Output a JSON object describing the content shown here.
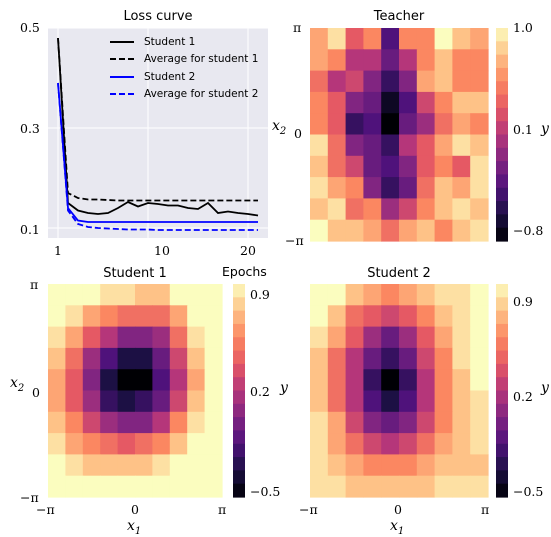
{
  "colors": {
    "loss_bg": "#e8e8f0",
    "student1": "#000000",
    "student2": "#0000ff",
    "magma_stops": [
      "#000004",
      "#1c1044",
      "#4f127b",
      "#812581",
      "#b5367a",
      "#e55964",
      "#fb8761",
      "#fec287",
      "#fbfdbf"
    ]
  },
  "chart_data": [
    {
      "type": "line",
      "title": "Loss curve",
      "xlabel": "Epochs",
      "ylabel": "",
      "xlim": [
        0,
        22
      ],
      "ylim": [
        0.08,
        0.5
      ],
      "xticks": [
        "1",
        "10",
        "20"
      ],
      "yticks": [
        "0.1",
        "0.3",
        "0.5"
      ],
      "grid": true,
      "legend_position": "top-right",
      "x": [
        1,
        2,
        3,
        4,
        5,
        6,
        7,
        8,
        9,
        10,
        11,
        12,
        13,
        14,
        15,
        16,
        17,
        18,
        19,
        20,
        21
      ],
      "series": [
        {
          "name": "Student 1",
          "style": "solid",
          "color": "#000000",
          "values": [
            0.48,
            0.15,
            0.135,
            0.13,
            0.128,
            0.13,
            0.14,
            0.152,
            0.143,
            0.15,
            0.148,
            0.145,
            0.145,
            0.14,
            0.138,
            0.15,
            0.13,
            0.133,
            0.13,
            0.128,
            0.125
          ]
        },
        {
          "name": "Average for student 1",
          "style": "dashed",
          "color": "#000000",
          "values": [
            0.48,
            0.17,
            0.16,
            0.157,
            0.157,
            0.156,
            0.155,
            0.155,
            0.155,
            0.155,
            0.155,
            0.155,
            0.155,
            0.155,
            0.155,
            0.155,
            0.155,
            0.155,
            0.155,
            0.155,
            0.155
          ]
        },
        {
          "name": "Student 2",
          "style": "solid",
          "color": "#0000ff",
          "values": [
            0.39,
            0.14,
            0.115,
            0.112,
            0.112,
            0.112,
            0.112,
            0.112,
            0.112,
            0.112,
            0.112,
            0.112,
            0.112,
            0.112,
            0.112,
            0.112,
            0.112,
            0.112,
            0.112,
            0.112,
            0.112
          ]
        },
        {
          "name": "Average for student 2",
          "style": "dashed",
          "color": "#0000ff",
          "values": [
            0.39,
            0.135,
            0.108,
            0.102,
            0.1,
            0.099,
            0.098,
            0.097,
            0.097,
            0.097,
            0.096,
            0.096,
            0.096,
            0.096,
            0.096,
            0.096,
            0.096,
            0.096,
            0.096,
            0.096,
            0.096
          ]
        }
      ]
    },
    {
      "type": "heatmap",
      "title": "Teacher",
      "xlabel": "",
      "ylabel": "x2",
      "colorbar_label": "y",
      "colorbar_ticks": [
        "1.0",
        "0.1",
        "−0.8"
      ],
      "vmin": -0.8,
      "vmax": 1.0,
      "yticks": [
        "π",
        "0",
        "−π"
      ],
      "xticks": [],
      "center": [
        0.1,
        0.0
      ],
      "values": [
        [
          0.68,
          0.84,
          0.33,
          0.56,
          -0.31,
          0.52,
          0.6,
          0.98,
          0.73,
          0.66
        ],
        [
          0.64,
          0.58,
          0.08,
          0.05,
          -0.26,
          0.06,
          0.55,
          0.83,
          0.52,
          0.58
        ],
        [
          0.45,
          0.15,
          0.22,
          -0.14,
          -0.48,
          -0.12,
          0.66,
          0.72,
          0.5,
          0.6
        ],
        [
          0.58,
          0.34,
          -0.12,
          -0.25,
          -0.68,
          -0.4,
          0.21,
          0.56,
          0.72,
          0.75
        ],
        [
          0.5,
          0.3,
          -0.45,
          -0.35,
          -0.8,
          -0.2,
          -0.05,
          0.44,
          0.62,
          0.58
        ],
        [
          0.9,
          0.42,
          -0.15,
          -0.28,
          -0.48,
          0.1,
          0.38,
          0.68,
          0.92,
          0.82
        ],
        [
          0.78,
          0.46,
          0.22,
          -0.22,
          -0.35,
          -0.15,
          0.34,
          0.54,
          0.28,
          0.85
        ],
        [
          0.88,
          0.62,
          0.5,
          -0.1,
          -0.45,
          -0.2,
          0.4,
          0.72,
          0.65,
          0.94
        ],
        [
          0.8,
          0.9,
          0.48,
          0.5,
          -0.05,
          0.2,
          0.55,
          0.8,
          0.9,
          0.8
        ],
        [
          0.95,
          0.72,
          0.78,
          0.7,
          0.48,
          0.62,
          0.78,
          0.55,
          0.74,
          0.88
        ]
      ]
    },
    {
      "type": "heatmap",
      "title": "Student 1",
      "xlabel": "x1",
      "ylabel": "x2",
      "colorbar_label": "y",
      "colorbar_ticks": [
        "0.9",
        "0.2",
        "−0.5"
      ],
      "vmin": -0.5,
      "vmax": 0.9,
      "xticks": [
        "−π",
        "0",
        "π"
      ],
      "yticks": [
        "π",
        "0",
        "−π"
      ],
      "center": [
        0.15,
        0.35
      ],
      "values": [
        [
          0.9,
          0.9,
          0.88,
          0.84,
          0.78,
          0.74,
          0.76,
          0.86,
          0.9,
          0.9
        ],
        [
          0.88,
          0.82,
          0.66,
          0.52,
          0.44,
          0.42,
          0.5,
          0.68,
          0.86,
          0.9
        ],
        [
          0.82,
          0.62,
          0.36,
          0.16,
          0.04,
          0.02,
          0.14,
          0.44,
          0.78,
          0.9
        ],
        [
          0.72,
          0.44,
          0.12,
          -0.16,
          -0.32,
          -0.32,
          -0.1,
          0.26,
          0.7,
          0.9
        ],
        [
          0.66,
          0.34,
          0.02,
          -0.32,
          -0.5,
          -0.46,
          -0.14,
          0.22,
          0.66,
          0.9
        ],
        [
          0.66,
          0.38,
          0.08,
          -0.2,
          -0.32,
          -0.28,
          -0.02,
          0.32,
          0.72,
          0.9
        ],
        [
          0.72,
          0.52,
          0.3,
          0.1,
          0.02,
          0.06,
          0.24,
          0.52,
          0.8,
          0.9
        ],
        [
          0.8,
          0.68,
          0.56,
          0.44,
          0.4,
          0.44,
          0.58,
          0.74,
          0.86,
          0.9
        ],
        [
          0.86,
          0.8,
          0.76,
          0.72,
          0.72,
          0.74,
          0.8,
          0.86,
          0.9,
          0.9
        ],
        [
          0.9,
          0.88,
          0.86,
          0.86,
          0.86,
          0.88,
          0.9,
          0.9,
          0.9,
          0.9
        ]
      ]
    },
    {
      "type": "heatmap",
      "title": "Student 2",
      "xlabel": "x1",
      "ylabel": "",
      "colorbar_label": "y",
      "colorbar_ticks": [
        "0.9",
        "0.2",
        "−0.5"
      ],
      "vmin": -0.5,
      "vmax": 0.9,
      "xticks": [
        "−π",
        "0",
        "π"
      ],
      "yticks": [],
      "center": [
        0.2,
        -0.15
      ],
      "values": [
        [
          0.92,
          0.86,
          0.74,
          0.62,
          0.58,
          0.62,
          0.72,
          0.8,
          0.84,
          0.88
        ],
        [
          0.88,
          0.72,
          0.5,
          0.34,
          0.28,
          0.34,
          0.52,
          0.7,
          0.82,
          0.88
        ],
        [
          0.8,
          0.6,
          0.34,
          0.1,
          -0.02,
          0.1,
          0.34,
          0.6,
          0.8,
          0.88
        ],
        [
          0.74,
          0.5,
          0.22,
          -0.08,
          -0.24,
          -0.08,
          0.26,
          0.56,
          0.78,
          0.88
        ],
        [
          0.72,
          0.46,
          0.16,
          -0.22,
          -0.48,
          -0.2,
          0.2,
          0.52,
          0.76,
          0.86
        ],
        [
          0.76,
          0.5,
          0.2,
          -0.12,
          -0.3,
          -0.12,
          0.22,
          0.52,
          0.74,
          0.82
        ],
        [
          0.8,
          0.6,
          0.32,
          0.04,
          -0.06,
          0.06,
          0.32,
          0.58,
          0.74,
          0.8
        ],
        [
          0.82,
          0.68,
          0.48,
          0.3,
          0.24,
          0.32,
          0.5,
          0.66,
          0.72,
          0.78
        ],
        [
          0.8,
          0.72,
          0.6,
          0.54,
          0.52,
          0.56,
          0.64,
          0.7,
          0.72,
          0.76
        ],
        [
          0.84,
          0.78,
          0.72,
          0.7,
          0.7,
          0.72,
          0.76,
          0.78,
          0.78,
          0.8
        ]
      ]
    }
  ]
}
